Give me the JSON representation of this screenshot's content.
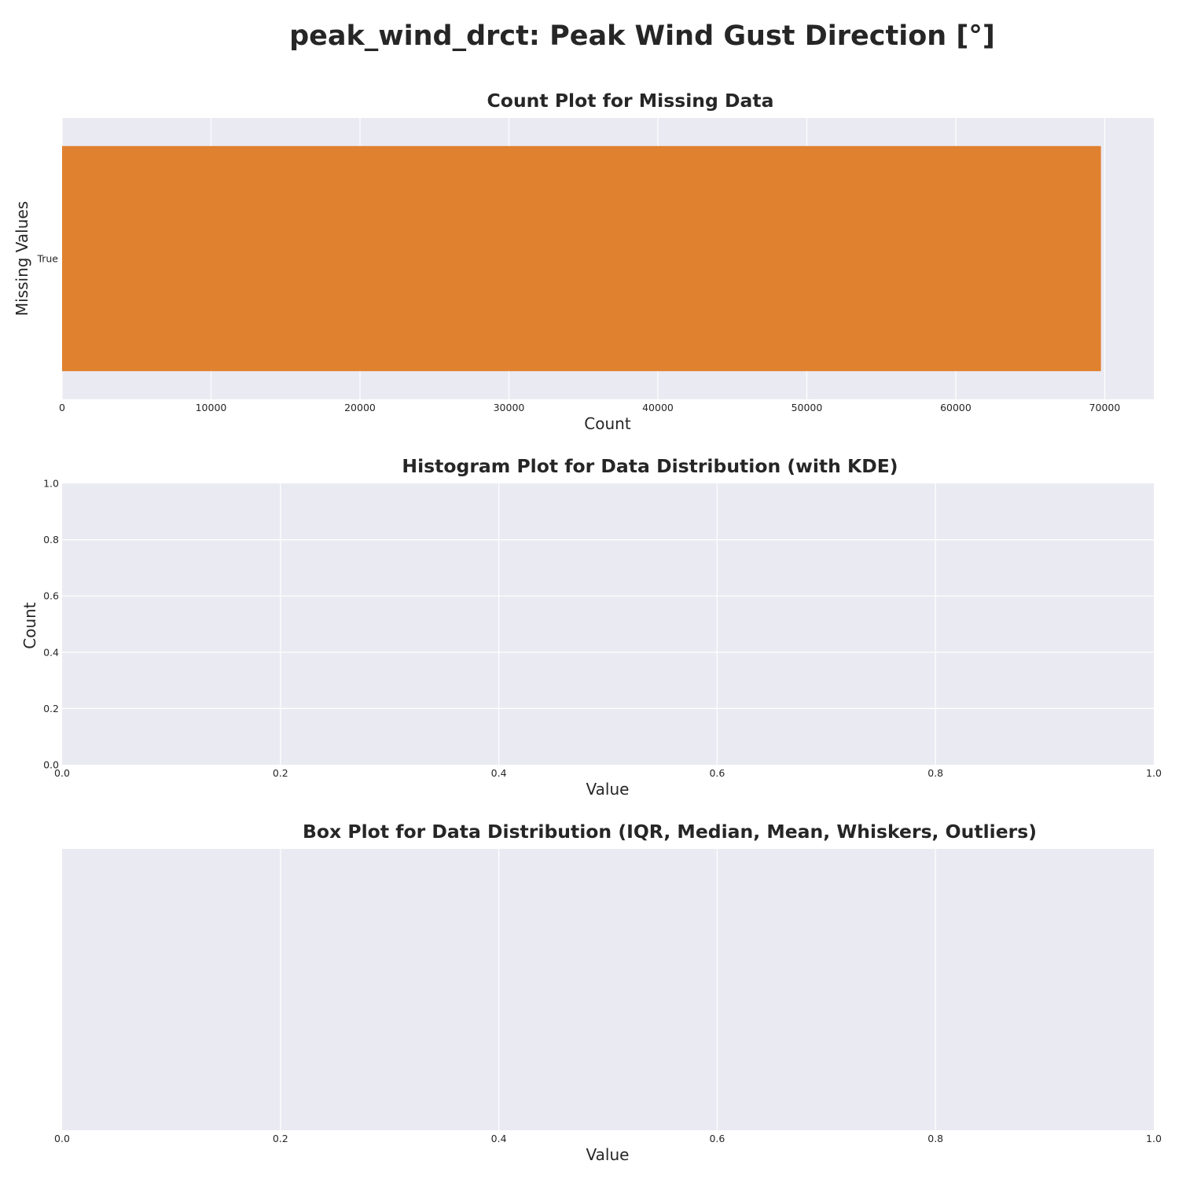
{
  "suptitle": "peak_wind_drct: Peak Wind Gust Direction [°]",
  "chart_data": [
    {
      "type": "bar",
      "orientation": "horizontal",
      "title": "Count Plot for Missing Data",
      "xlabel": "Count",
      "ylabel": "Missing Values",
      "categories": [
        "True"
      ],
      "values": [
        69750
      ],
      "xlim": [
        0,
        73300
      ],
      "xticks": [
        0,
        10000,
        20000,
        30000,
        40000,
        50000,
        60000,
        70000
      ],
      "bar_color": "#e0812f",
      "grid": true
    },
    {
      "type": "bar",
      "title": "Histogram Plot for Data Distribution (with KDE)",
      "xlabel": "Value",
      "ylabel": "Count",
      "values": [],
      "xlim": [
        0,
        1
      ],
      "ylim": [
        0,
        1
      ],
      "xticks": [
        "0.0",
        "0.2",
        "0.4",
        "0.6",
        "0.8",
        "1.0"
      ],
      "yticks": [
        "0.0",
        "0.2",
        "0.4",
        "0.6",
        "0.8",
        "1.0"
      ],
      "grid": true
    },
    {
      "type": "box",
      "title": "Box Plot for Data Distribution (IQR, Median, Mean, Whiskers, Outliers)",
      "xlabel": "Value",
      "values": [],
      "xlim": [
        0,
        1
      ],
      "xticks": [
        "0.0",
        "0.2",
        "0.4",
        "0.6",
        "0.8",
        "1.0"
      ],
      "grid": true
    }
  ],
  "colors": {
    "axes_background": "#eaeaf2",
    "grid": "#ffffff",
    "text": "#262626"
  }
}
